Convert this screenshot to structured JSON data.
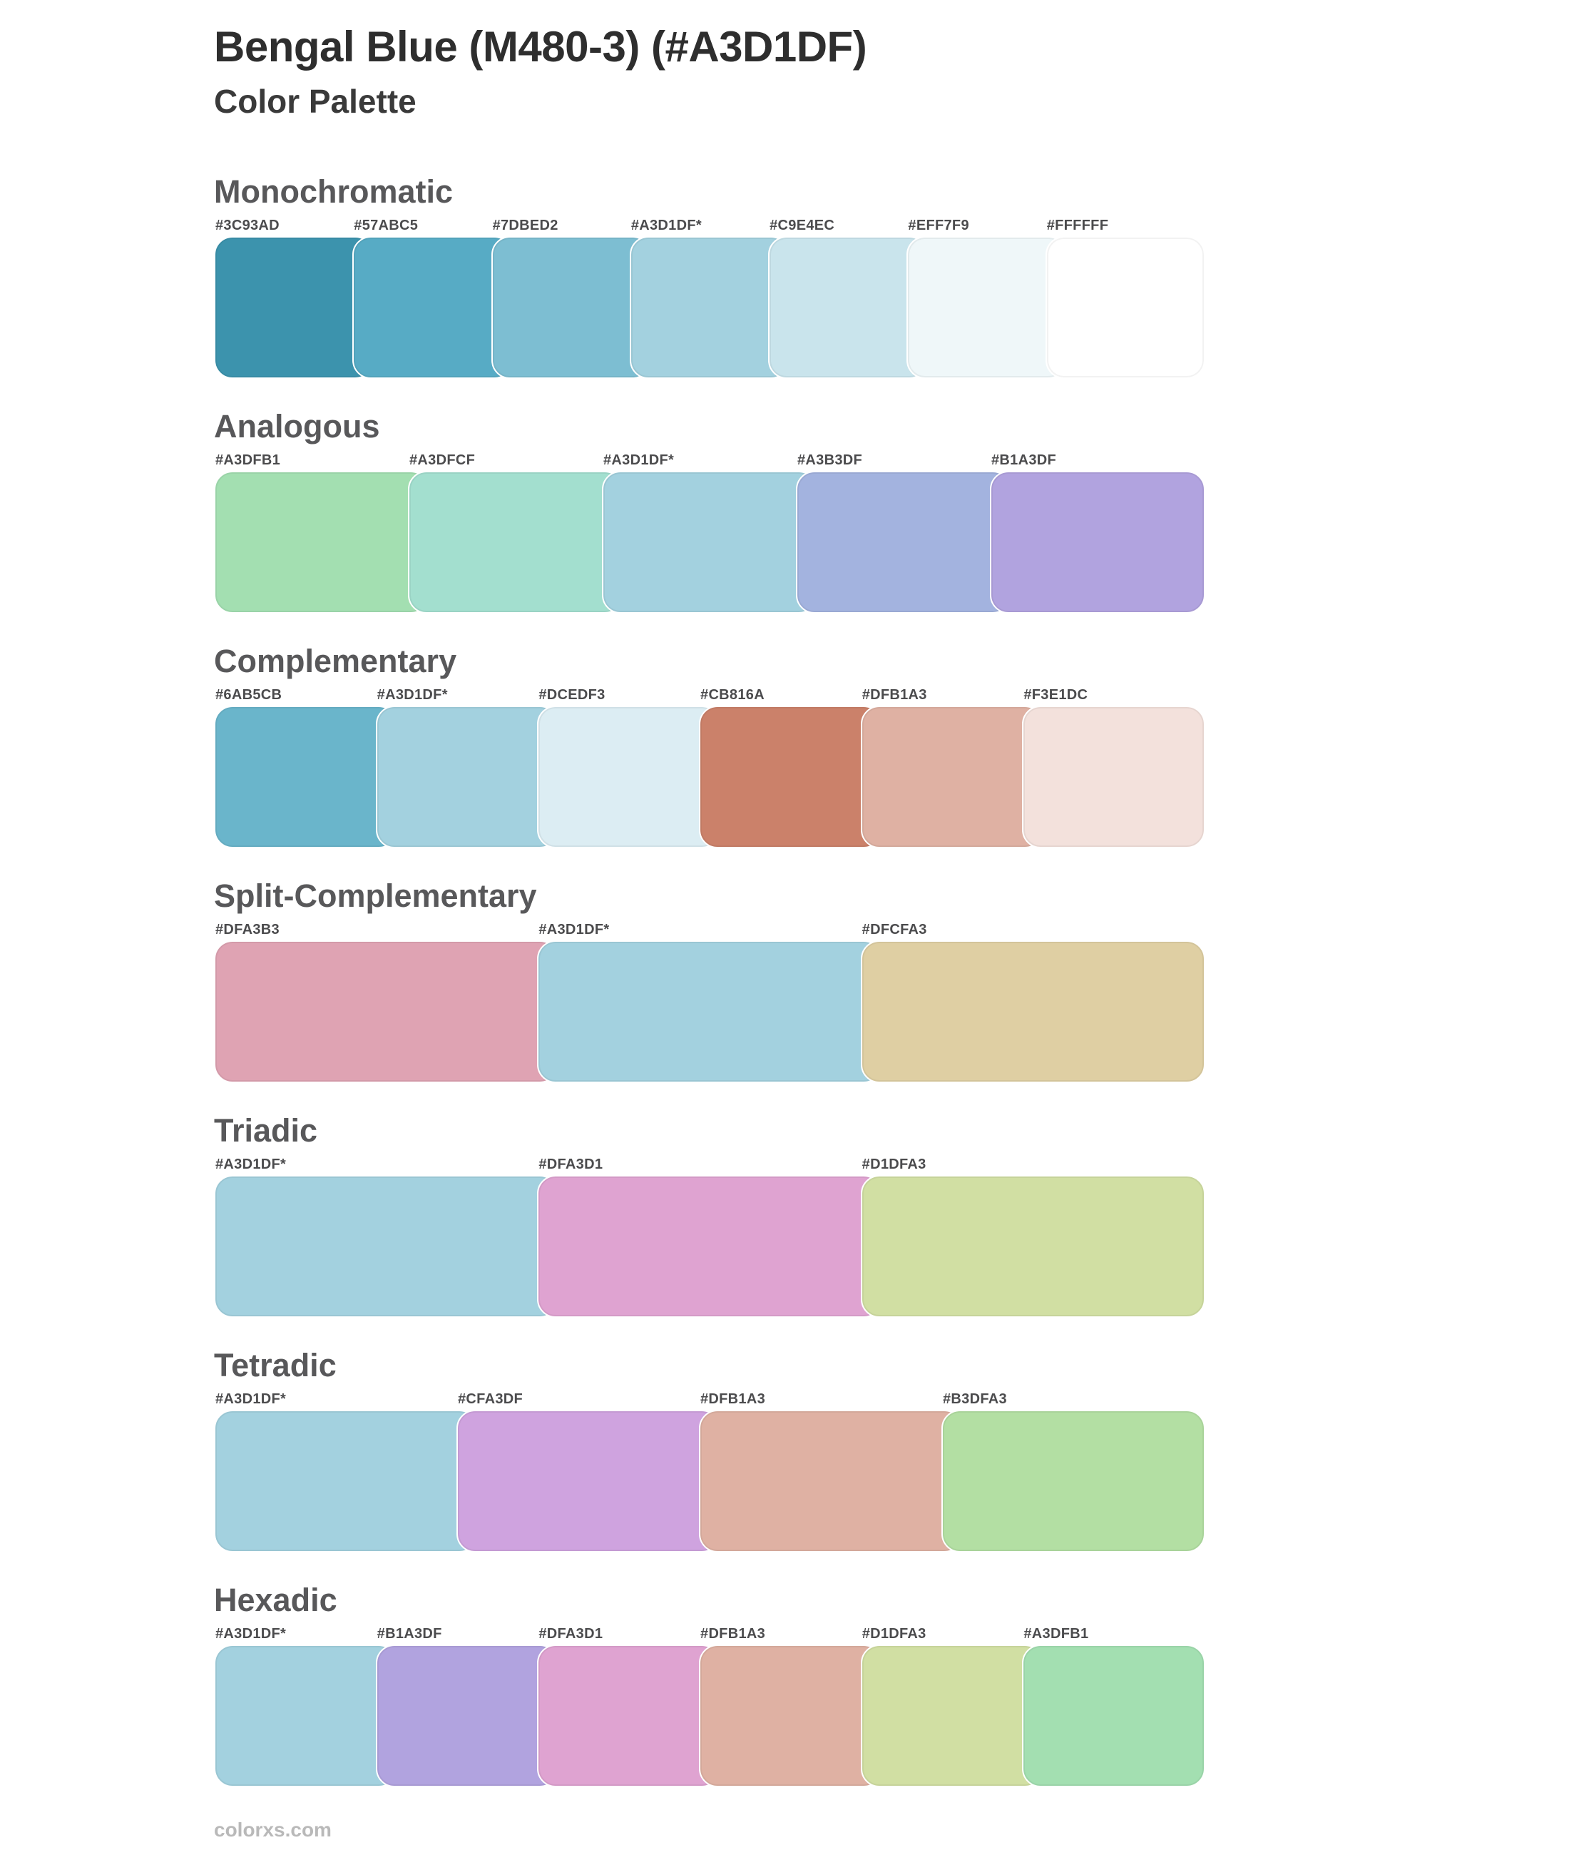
{
  "header": {
    "title": "Bengal Blue (M480-3) (#A3D1DF)",
    "subtitle": "Color Palette"
  },
  "base_color": {
    "name": "Bengal Blue (M480-3)",
    "hex": "#A3D1DF"
  },
  "sections": [
    {
      "name": "Monochromatic",
      "swatches": [
        {
          "label": "#3C93AD",
          "color": "#3C93AD"
        },
        {
          "label": "#57ABC5",
          "color": "#57ABC5"
        },
        {
          "label": "#7DBED2",
          "color": "#7DBED2"
        },
        {
          "label": "#A3D1DF*",
          "color": "#A3D1DF"
        },
        {
          "label": "#C9E4EC",
          "color": "#C9E4EC"
        },
        {
          "label": "#EFF7F9",
          "color": "#EFF7F9"
        },
        {
          "label": "#FFFFFF",
          "color": "#FFFFFF"
        }
      ]
    },
    {
      "name": "Analogous",
      "swatches": [
        {
          "label": "#A3DFB1",
          "color": "#A3DFB1"
        },
        {
          "label": "#A3DFCF",
          "color": "#A3DFCF"
        },
        {
          "label": "#A3D1DF*",
          "color": "#A3D1DF"
        },
        {
          "label": "#A3B3DF",
          "color": "#A3B3DF"
        },
        {
          "label": "#B1A3DF",
          "color": "#B1A3DF"
        }
      ]
    },
    {
      "name": "Complementary",
      "swatches": [
        {
          "label": "#6AB5CB",
          "color": "#6AB5CB"
        },
        {
          "label": "#A3D1DF*",
          "color": "#A3D1DF"
        },
        {
          "label": "#DCEDF3",
          "color": "#DCEDF3"
        },
        {
          "label": "#CB816A",
          "color": "#CB816A"
        },
        {
          "label": "#DFB1A3",
          "color": "#DFB1A3"
        },
        {
          "label": "#F3E1DC",
          "color": "#F3E1DC"
        }
      ]
    },
    {
      "name": "Split-Complementary",
      "swatches": [
        {
          "label": "#DFA3B3",
          "color": "#DFA3B3"
        },
        {
          "label": "#A3D1DF*",
          "color": "#A3D1DF"
        },
        {
          "label": "#DFCFA3",
          "color": "#DFCFA3"
        }
      ]
    },
    {
      "name": "Triadic",
      "swatches": [
        {
          "label": "#A3D1DF*",
          "color": "#A3D1DF"
        },
        {
          "label": "#DFA3D1",
          "color": "#DFA3D1"
        },
        {
          "label": "#D1DFA3",
          "color": "#D1DFA3"
        }
      ]
    },
    {
      "name": "Tetradic",
      "swatches": [
        {
          "label": "#A3D1DF*",
          "color": "#A3D1DF"
        },
        {
          "label": "#CFA3DF",
          "color": "#CFA3DF"
        },
        {
          "label": "#DFB1A3",
          "color": "#DFB1A3"
        },
        {
          "label": "#B3DFA3",
          "color": "#B3DFA3"
        }
      ]
    },
    {
      "name": "Hexadic",
      "swatches": [
        {
          "label": "#A3D1DF*",
          "color": "#A3D1DF"
        },
        {
          "label": "#B1A3DF",
          "color": "#B1A3DF"
        },
        {
          "label": "#DFA3D1",
          "color": "#DFA3D1"
        },
        {
          "label": "#DFB1A3",
          "color": "#DFB1A3"
        },
        {
          "label": "#D1DFA3",
          "color": "#D1DFA3"
        },
        {
          "label": "#A3DFB1",
          "color": "#A3DFB1"
        }
      ]
    }
  ],
  "footer": {
    "site": "colorxs.com"
  }
}
